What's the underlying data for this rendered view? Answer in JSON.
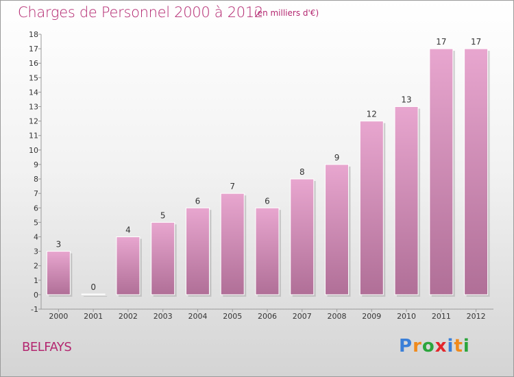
{
  "title": "Charges de Personnel 2000 à 2012",
  "subtitle": "(en milliers d'€)",
  "town": "BELFAYS",
  "logo": {
    "letters": [
      "P",
      "r",
      "o",
      "x",
      "i",
      "t",
      "i"
    ],
    "colors": [
      "#3a7fd8",
      "#f08a1c",
      "#2ba53c",
      "#e3262b",
      "#3a7fd8",
      "#f08a1c",
      "#2ba53c"
    ]
  },
  "colors": {
    "title": "#b3266f",
    "bar_top": "#e8a6cf",
    "bar_bottom": "#b06f97",
    "grid": "#999999"
  },
  "chart_data": {
    "type": "bar",
    "title": "Charges de Personnel 2000 à 2012",
    "subtitle": "(en milliers d'€)",
    "categories": [
      "2000",
      "2001",
      "2002",
      "2003",
      "2004",
      "2005",
      "2006",
      "2007",
      "2008",
      "2009",
      "2010",
      "2011",
      "2012"
    ],
    "values": [
      3,
      0,
      4,
      5,
      6,
      7,
      6,
      8,
      9,
      12,
      13,
      17,
      17
    ],
    "data_labels": [
      "3",
      "0",
      "4",
      "5",
      "6",
      "7",
      "6",
      "8",
      "9",
      "12",
      "13",
      "17",
      "17"
    ],
    "ylim": [
      -1,
      18
    ],
    "yticks": [
      "-1",
      "0",
      "1",
      "2",
      "3",
      "4",
      "5",
      "6",
      "7",
      "8",
      "9",
      "10",
      "11",
      "12",
      "13",
      "14",
      "15",
      "16",
      "17",
      "18"
    ],
    "grid": false,
    "xlabel": "",
    "ylabel": ""
  }
}
